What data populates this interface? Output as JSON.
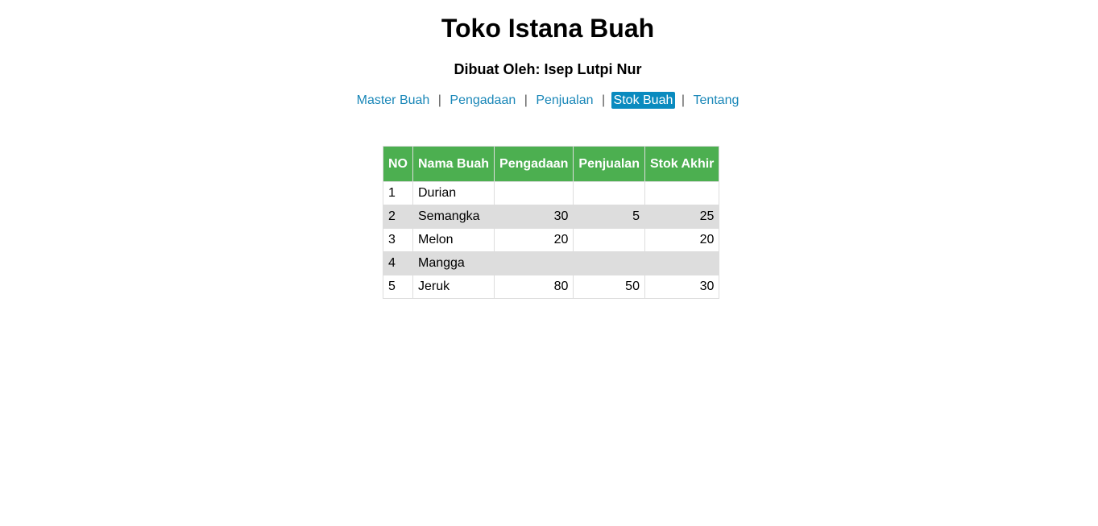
{
  "page": {
    "title": "Toko Istana Buah",
    "subtitle": "Dibuat Oleh: Isep Lutpi Nur"
  },
  "nav": {
    "items": [
      {
        "label": "Master Buah",
        "active": false
      },
      {
        "label": "Pengadaan",
        "active": false
      },
      {
        "label": "Penjualan",
        "active": false
      },
      {
        "label": "Stok Buah",
        "active": true
      },
      {
        "label": "Tentang",
        "active": false
      }
    ],
    "separator": "|"
  },
  "table": {
    "headers": [
      "NO",
      "Nama Buah",
      "Pengadaan",
      "Penjualan",
      "Stok Akhir"
    ],
    "rows": [
      {
        "no": "1",
        "nama": "Durian",
        "pengadaan": "",
        "penjualan": "",
        "stok_akhir": ""
      },
      {
        "no": "2",
        "nama": "Semangka",
        "pengadaan": "30",
        "penjualan": "5",
        "stok_akhir": "25"
      },
      {
        "no": "3",
        "nama": "Melon",
        "pengadaan": "20",
        "penjualan": "",
        "stok_akhir": "20"
      },
      {
        "no": "4",
        "nama": "Mangga",
        "pengadaan": "",
        "penjualan": "",
        "stok_akhir": ""
      },
      {
        "no": "5",
        "nama": "Jeruk",
        "pengadaan": "80",
        "penjualan": "50",
        "stok_akhir": "30"
      }
    ]
  },
  "colors": {
    "header_bg": "#4caf50",
    "active_nav_bg": "#0a8bbf",
    "link": "#1a87b8",
    "alt_row_bg": "#dddddd"
  }
}
